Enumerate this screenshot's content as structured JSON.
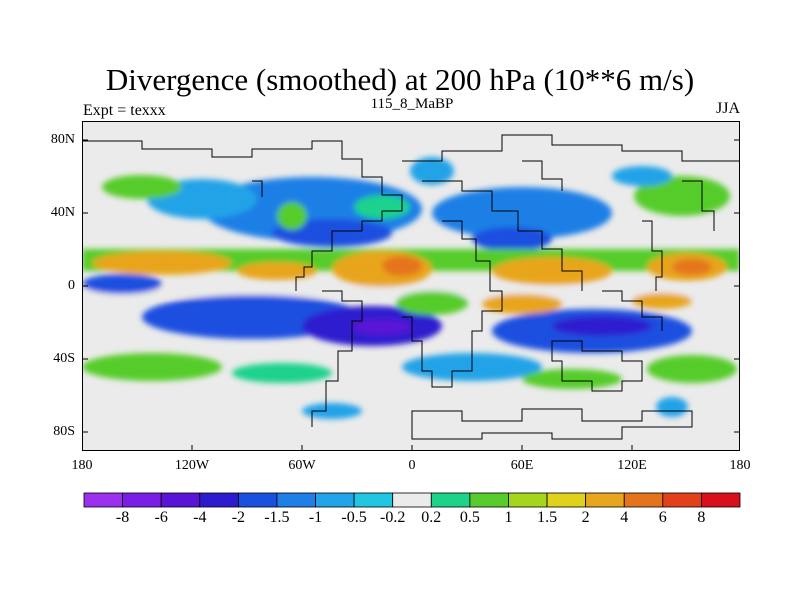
{
  "title": "Divergence (smoothed) at 200 hPa (10**6 m/s)",
  "left_label": "Expt = texxx",
  "center_label": "115_8_MaBP",
  "right_label": "JJA",
  "y_axis": {
    "ticks": [
      "80N",
      "40N",
      "0",
      "40S",
      "80S"
    ]
  },
  "x_axis": {
    "ticks": [
      "180",
      "120W",
      "60W",
      "0",
      "60E",
      "120E",
      "180"
    ]
  },
  "colorbar": {
    "colors": [
      "#9b30ee",
      "#7a1ee6",
      "#5a14d6",
      "#2d1ccf",
      "#1a50e0",
      "#1e7fe6",
      "#20a3e8",
      "#21c6e0",
      "#ebebeb",
      "#1ed28c",
      "#57cc2c",
      "#a6d61c",
      "#e0d21a",
      "#e8a51e",
      "#e4741c",
      "#e2401a",
      "#d8101a"
    ],
    "labels": [
      "-8",
      "-6",
      "-4",
      "-2",
      "-1.5",
      "-1",
      "-0.5",
      "-0.2",
      "0.2",
      "0.5",
      "1",
      "1.5",
      "2",
      "4",
      "6",
      "8"
    ]
  },
  "colors": {
    "background": "#ebebeb",
    "coastline": "#000000"
  }
}
